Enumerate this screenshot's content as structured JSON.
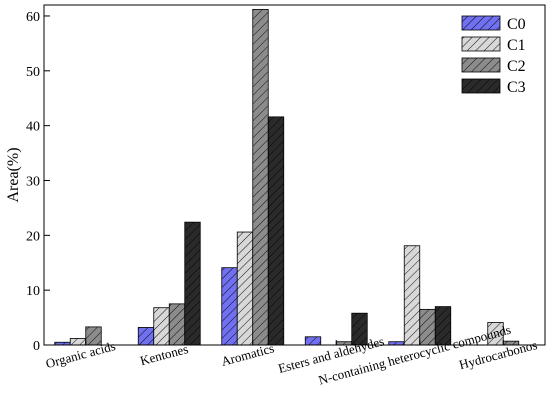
{
  "chart_data": {
    "type": "bar",
    "title": "",
    "xlabel": "",
    "ylabel": "Area(%)",
    "ylim": [
      0,
      62
    ],
    "yticks": [
      0,
      10,
      20,
      30,
      40,
      50,
      60
    ],
    "yticks_text": [
      "0",
      "10",
      "20",
      "30",
      "40",
      "50",
      "60"
    ],
    "grid": false,
    "legend_position": "top-right",
    "categories": [
      "Organic acids",
      "Kentones",
      "Aromatics",
      "Esters and aldehydes",
      "N-containing heterocyclic compounds",
      "Hydrocarbonos"
    ],
    "series": [
      {
        "name": "C0",
        "color": "#7070f0",
        "values": [
          0.5,
          3.2,
          14.1,
          1.5,
          0.6,
          0
        ]
      },
      {
        "name": "C1",
        "color": "#d8d8d8",
        "values": [
          1.2,
          6.8,
          20.6,
          0,
          18.1,
          4.1
        ]
      },
      {
        "name": "C2",
        "color": "#8c8c8c",
        "values": [
          3.3,
          7.5,
          61.2,
          0.6,
          6.5,
          0.7
        ]
      },
      {
        "name": "C3",
        "color": "#2a2a2a",
        "values": [
          0,
          22.4,
          41.6,
          5.8,
          7.0,
          0
        ]
      }
    ]
  }
}
